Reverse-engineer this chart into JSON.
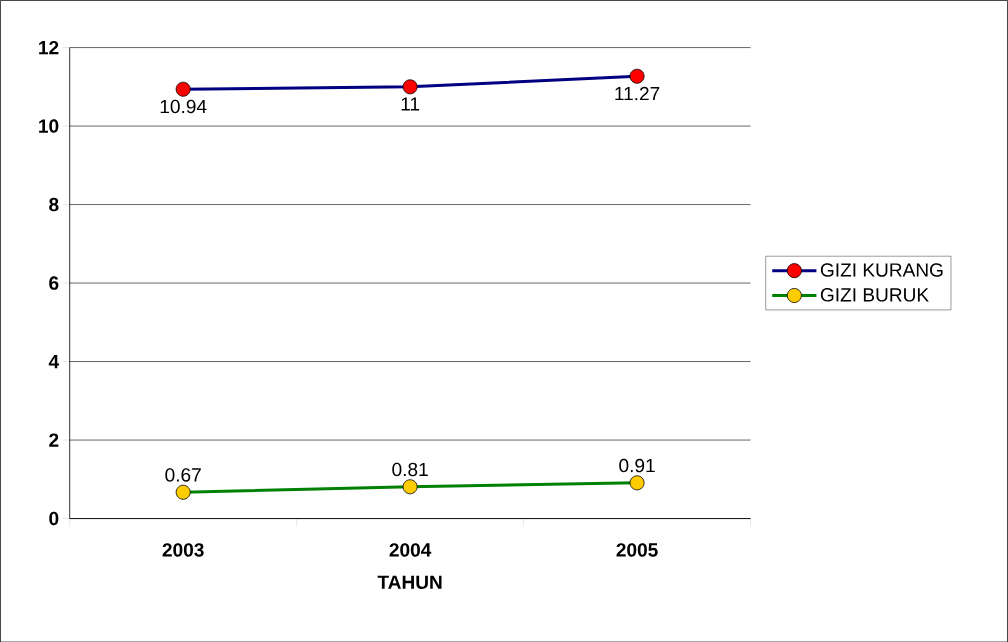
{
  "chart_data": {
    "type": "line",
    "categories": [
      "2003",
      "2004",
      "2005"
    ],
    "xlabel": "TAHUN",
    "ylim": [
      0,
      12
    ],
    "yticks": [
      0,
      2,
      4,
      6,
      8,
      10,
      12
    ],
    "grid": "y",
    "legend": "right",
    "marker": "circle",
    "line_style": "solid",
    "data_labels": true,
    "series": [
      {
        "name": "GIZI KURANG",
        "color": "#000080",
        "colors": [
          "#ff0000",
          "#ff0000",
          "#ff0000"
        ],
        "values": [
          10.94,
          11,
          11.27
        ]
      },
      {
        "name": "GIZI BURUK",
        "color": "#008000",
        "colors": [
          "#ffcc00",
          "#ffcc00",
          "#ffcc00"
        ],
        "values": [
          0.67,
          0.81,
          0.91
        ]
      }
    ]
  }
}
